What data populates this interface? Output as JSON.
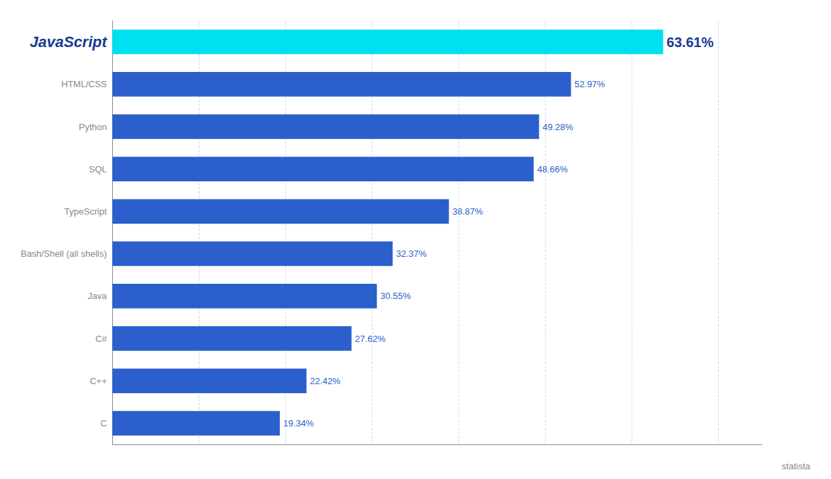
{
  "chart_data": {
    "type": "bar",
    "orientation": "horizontal",
    "categories": [
      "JavaScript",
      "HTML/CSS",
      "Python",
      "SQL",
      "TypeScript",
      "Bash/Shell (all shells)",
      "Java",
      "C#",
      "C++",
      "C"
    ],
    "values": [
      63.61,
      52.97,
      49.28,
      48.66,
      38.87,
      32.37,
      30.55,
      27.62,
      22.42,
      19.34
    ],
    "value_labels": [
      "63.61%",
      "52.97%",
      "49.28%",
      "48.66%",
      "38.87%",
      "32.37%",
      "30.55%",
      "27.62%",
      "22.42%",
      "19.34%"
    ],
    "colors": [
      "#00e0f0",
      "#2b5fcc",
      "#2b5fcc",
      "#2b5fcc",
      "#2b5fcc",
      "#2b5fcc",
      "#2b5fcc",
      "#2b5fcc",
      "#2b5fcc",
      "#2b5fcc"
    ],
    "xlim": [
      0,
      75
    ],
    "xticks": [
      0,
      10,
      20,
      30,
      40,
      50,
      60,
      70
    ],
    "grid": true,
    "data_labels": true,
    "tick_labels": "y",
    "annotation": "statista"
  }
}
